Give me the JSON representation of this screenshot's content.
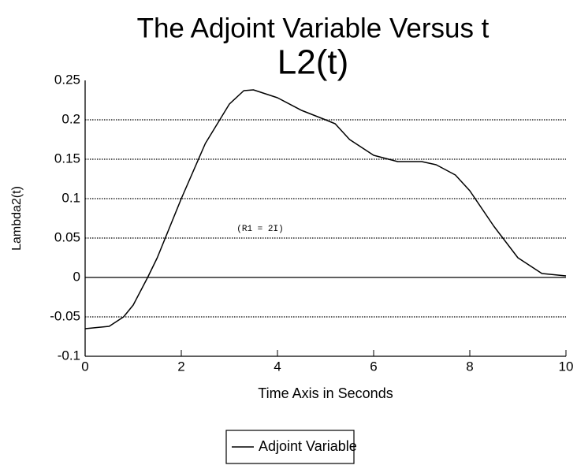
{
  "chart_data": {
    "type": "line",
    "title": "The Adjoint Variable Versus t",
    "subtitle": "L2(t)",
    "x_label": "Time Axis in Seconds",
    "y_label": "Lambda2(t)",
    "annotation": "(R1 = 2I)",
    "x": [
      0,
      0.5,
      0.8,
      1,
      1.3,
      1.5,
      2,
      2.5,
      3,
      3.3,
      3.5,
      4,
      4.5,
      5,
      5.2,
      5.5,
      6,
      6.5,
      7,
      7.3,
      7.7,
      8,
      8.5,
      9,
      9.5,
      10
    ],
    "series": [
      {
        "name": "Adjoint Variable",
        "color": "#000000",
        "values": [
          -0.065,
          -0.062,
          -0.05,
          -0.035,
          0,
          0.025,
          0.1,
          0.17,
          0.22,
          0.237,
          0.238,
          0.228,
          0.212,
          0.2,
          0.195,
          0.175,
          0.155,
          0.147,
          0.147,
          0.143,
          0.13,
          0.11,
          0.065,
          0.025,
          0.005,
          0.002
        ]
      }
    ],
    "xlim": [
      0,
      10
    ],
    "xticks": [
      0,
      2,
      4,
      6,
      8,
      10
    ],
    "ylim": [
      -0.1,
      0.25
    ],
    "yticks": [
      -0.1,
      -0.05,
      0,
      0.05,
      0.1,
      0.15,
      0.2,
      0.25
    ],
    "grid": true
  }
}
